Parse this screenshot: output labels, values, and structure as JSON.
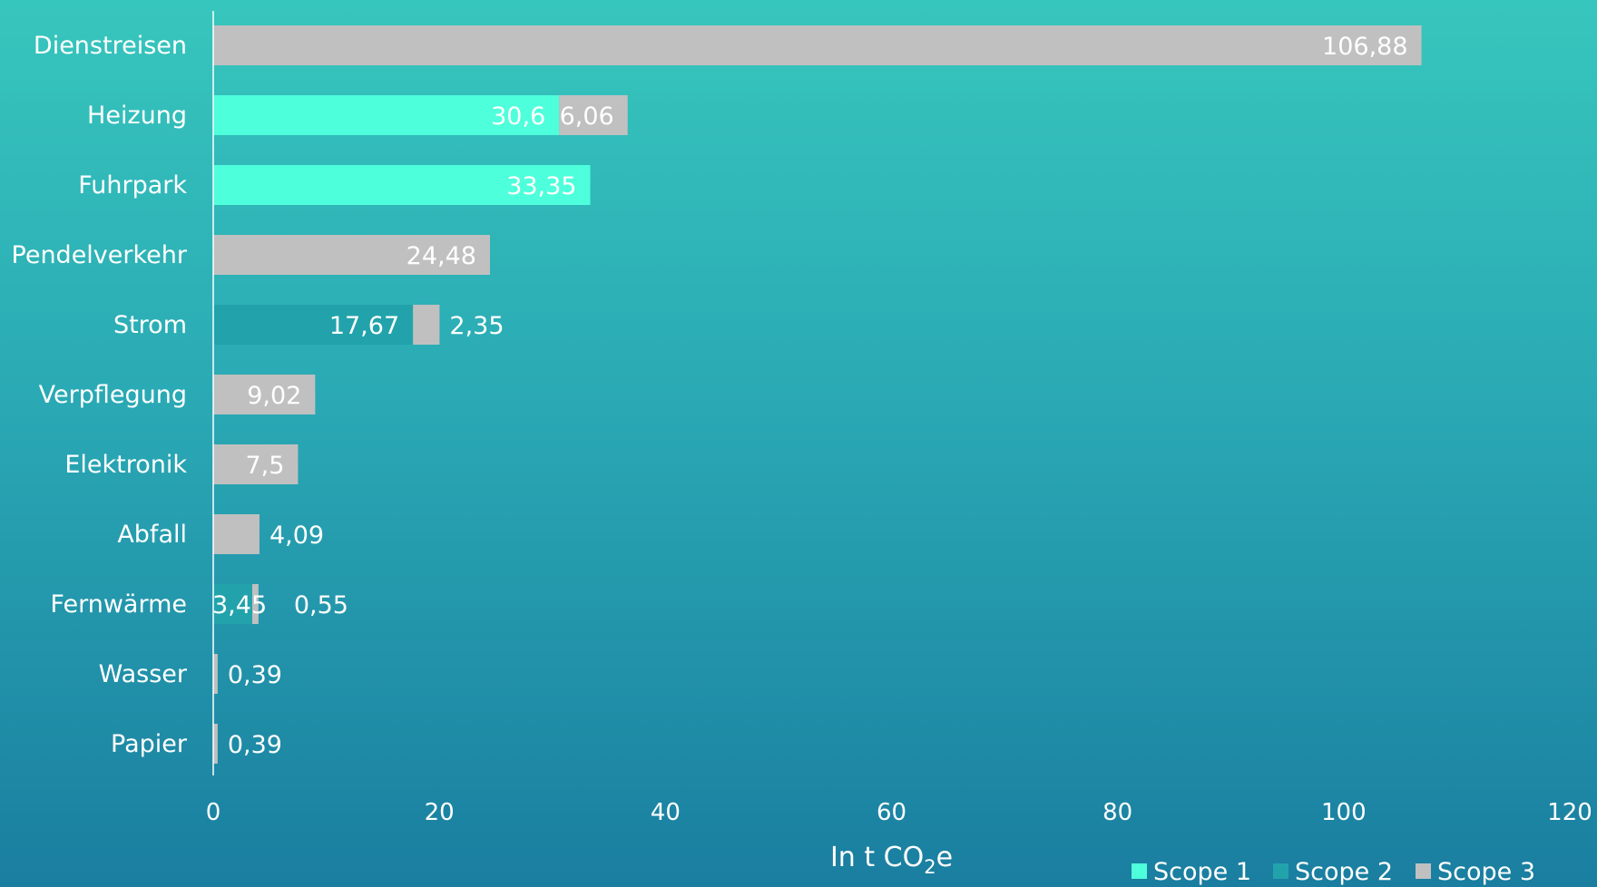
{
  "chart_data": {
    "type": "bar",
    "orientation": "horizontal",
    "stacked": true,
    "categories": [
      "Dienstreisen",
      "Heizung",
      "Fuhrpark",
      "Pendelverkehr",
      "Strom",
      "Verpflegung",
      "Elektronik",
      "Abfall",
      "Fernwärme",
      "Wasser",
      "Papier"
    ],
    "series": [
      {
        "name": "Scope 1",
        "color": "#4effdb",
        "values": [
          0,
          30.6,
          33.35,
          0,
          0,
          0,
          0,
          0,
          0,
          0,
          0
        ],
        "labels": [
          "",
          "30,6",
          "33,35",
          "",
          "",
          "",
          "",
          "",
          "",
          "",
          ""
        ]
      },
      {
        "name": "Scope 2",
        "color": "#22a3ab",
        "values": [
          0,
          0,
          0,
          0,
          17.67,
          0,
          0,
          0,
          3.45,
          0,
          0
        ],
        "labels": [
          "",
          "",
          "",
          "",
          "17,67",
          "",
          "",
          "",
          "3,45",
          "",
          ""
        ]
      },
      {
        "name": "Scope 3",
        "color": "#c0c0c0",
        "values": [
          106.88,
          6.06,
          0,
          24.48,
          2.35,
          9.02,
          7.5,
          4.09,
          0.55,
          0.39,
          0.39
        ],
        "labels": [
          "106,88",
          "6,06",
          "",
          "24,48",
          "2,35",
          "9,02",
          "7,5",
          "4,09",
          "0,55",
          "0,39",
          "0,39"
        ]
      }
    ],
    "xlim": [
      0,
      120
    ],
    "xticks": [
      0,
      20,
      40,
      60,
      80,
      100,
      120
    ],
    "xtick_labels": [
      "0",
      "20",
      "40",
      "60",
      "80",
      "100",
      "120"
    ],
    "xlabel": {
      "prefix": "In t CO",
      "subscript": "2",
      "suffix": "e"
    },
    "ylabel": "",
    "grid": false,
    "legend_position": "bottom-right"
  }
}
